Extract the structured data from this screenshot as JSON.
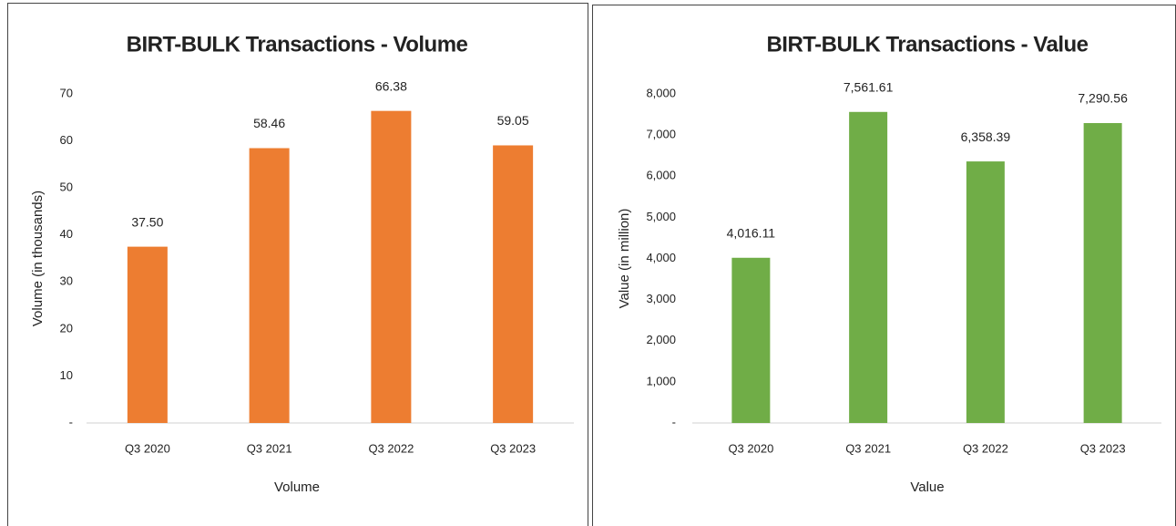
{
  "chart_data": [
    {
      "type": "bar",
      "title": "BIRT-BULK Transactions - Volume",
      "y_label": "Volume  (in thousands)",
      "x_label": "Volume",
      "categories": [
        "Q3 2020",
        "Q3 2021",
        "Q3 2022",
        "Q3 2023"
      ],
      "values": [
        37.5,
        58.46,
        66.38,
        59.05
      ],
      "value_labels": [
        "37.50",
        "58.46",
        "66.38",
        "59.05"
      ],
      "color": "#ED7D31",
      "ylim": [
        0,
        70
      ],
      "yticks": [
        {
          "value": 0,
          "label": "-"
        },
        10,
        20,
        30,
        40,
        50,
        60,
        70
      ],
      "grid": false
    },
    {
      "type": "bar",
      "title": "BIRT-BULK Transactions - Value",
      "y_label": "Value  (in million)",
      "x_label": "Value",
      "categories": [
        "Q3 2020",
        "Q3 2021",
        "Q3 2022",
        "Q3 2023"
      ],
      "values": [
        4016.11,
        7561.61,
        6358.39,
        7290.56
      ],
      "value_labels": [
        "4,016.11",
        "7,561.61",
        "6,358.39",
        "7,290.56"
      ],
      "color": "#70AD47",
      "ylim": [
        0,
        8000
      ],
      "yticks": [
        {
          "value": 0,
          "label": "-"
        },
        {
          "value": 1000,
          "label": "1,000"
        },
        {
          "value": 2000,
          "label": "2,000"
        },
        {
          "value": 3000,
          "label": "3,000"
        },
        {
          "value": 4000,
          "label": "4,000"
        },
        {
          "value": 5000,
          "label": "5,000"
        },
        {
          "value": 6000,
          "label": "6,000"
        },
        {
          "value": 7000,
          "label": "7,000"
        },
        {
          "value": 8000,
          "label": "8,000"
        }
      ],
      "grid": false
    }
  ]
}
